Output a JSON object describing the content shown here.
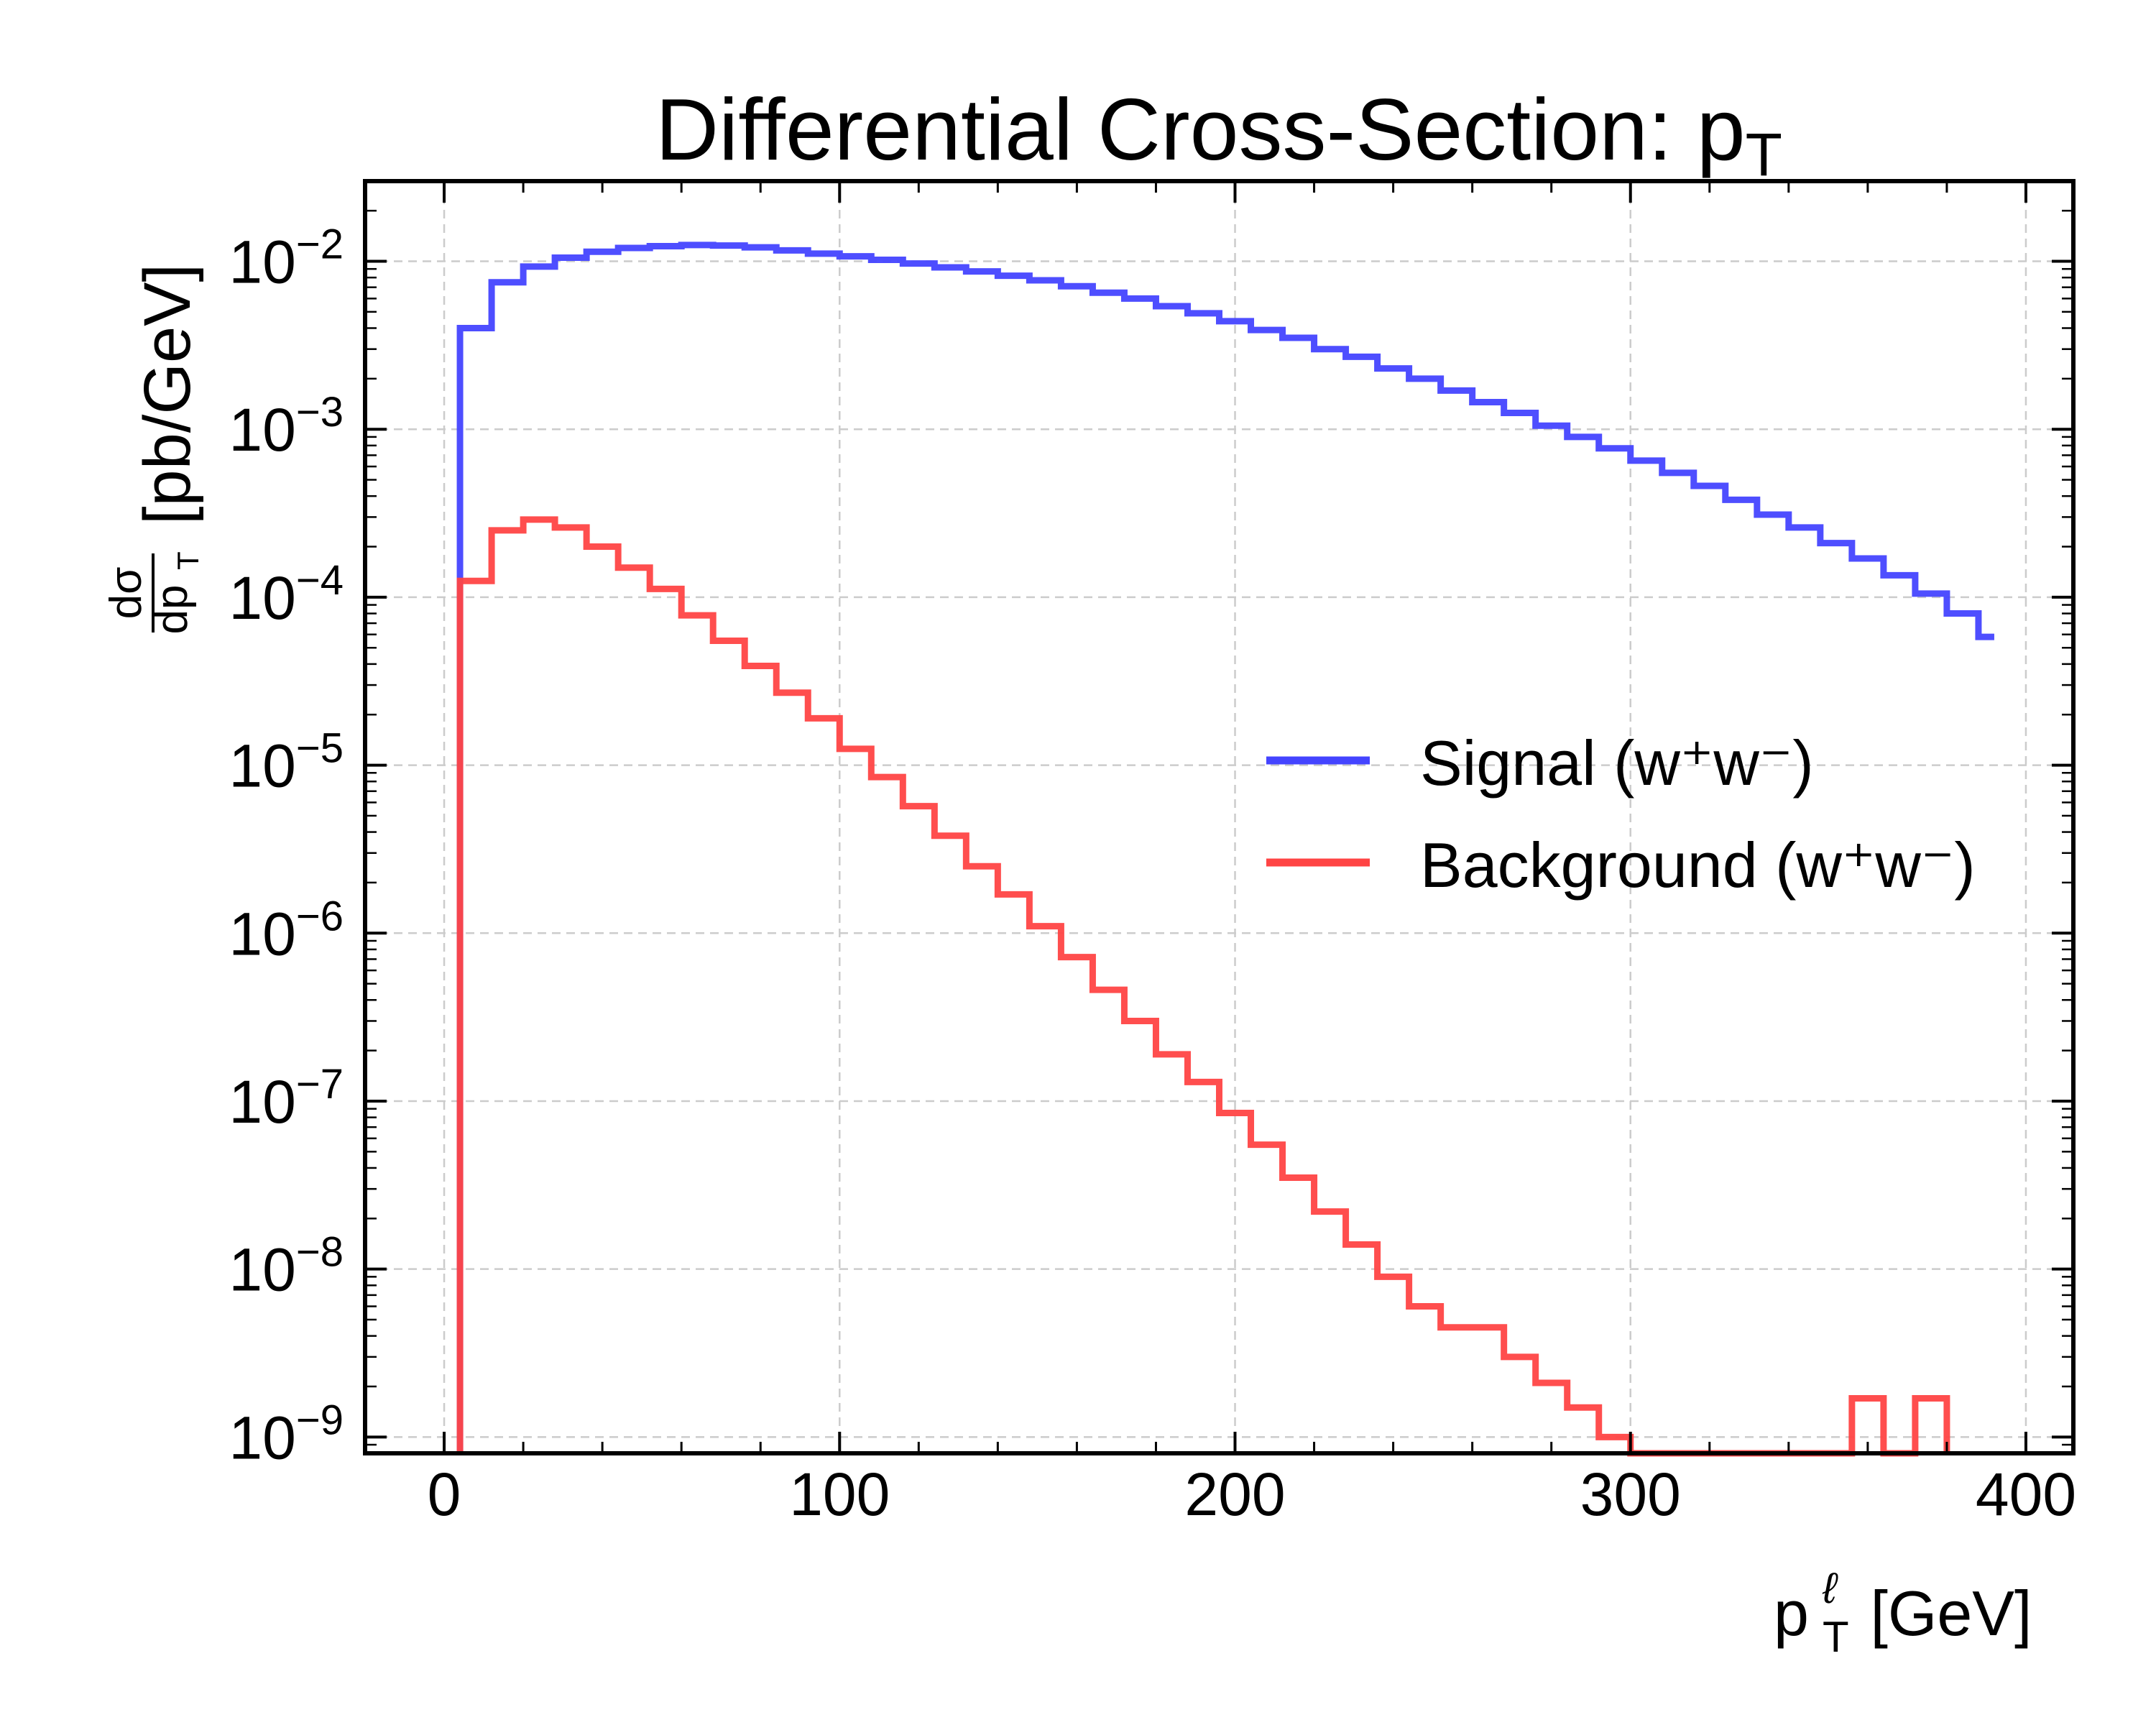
{
  "chart_data": {
    "type": "histogram-step",
    "title": {
      "base": "Differential Cross-Section: p",
      "sub": "T"
    },
    "xlabel": {
      "base": "p",
      "sup": "ℓ",
      "sub": "T",
      "unit": " [GeV]"
    },
    "ylabel": {
      "num": "dσ",
      "den_base": "dp",
      "den_sub": "T",
      "unit": "[pb/GeV]"
    },
    "xlim": [
      -20,
      412
    ],
    "ylim": [
      8e-10,
      0.03
    ],
    "yscale": "log",
    "grid": true,
    "x_ticks": [
      0,
      100,
      200,
      300,
      400
    ],
    "x_tick_labels": [
      "0",
      "100",
      "200",
      "300",
      "400"
    ],
    "y_tick_exponents": [
      -9,
      -8,
      -7,
      -6,
      -5,
      -4,
      -3,
      -2
    ],
    "y_tick_labels": [
      {
        "base": "10",
        "exp": "−9"
      },
      {
        "base": "10",
        "exp": "−8"
      },
      {
        "base": "10",
        "exp": "−7"
      },
      {
        "base": "10",
        "exp": "−6"
      },
      {
        "base": "10",
        "exp": "−5"
      },
      {
        "base": "10",
        "exp": "−4"
      },
      {
        "base": "10",
        "exp": "−3"
      },
      {
        "base": "10",
        "exp": "−2"
      }
    ],
    "legend_position": "center-right",
    "series": [
      {
        "name": "Signal (w⁺w⁻)",
        "color": "#4444ff",
        "edges": [
          4,
          12,
          20,
          28,
          36,
          44,
          52,
          60,
          68,
          76,
          84,
          92,
          100,
          108,
          116,
          124,
          132,
          140,
          148,
          156,
          164,
          172,
          180,
          188,
          196,
          204,
          212,
          220,
          228,
          236,
          244,
          252,
          260,
          268,
          276,
          284,
          292,
          300,
          308,
          316,
          324,
          332,
          340,
          348,
          356,
          364,
          372,
          380,
          388,
          392
        ],
        "values": [
          0.004,
          0.0075,
          0.0093,
          0.0105,
          0.0114,
          0.012,
          0.0123,
          0.0125,
          0.0124,
          0.0121,
          0.0116,
          0.0111,
          0.0107,
          0.0102,
          0.0097,
          0.0092,
          0.0087,
          0.0082,
          0.0077,
          0.0071,
          0.0065,
          0.006,
          0.0054,
          0.0049,
          0.0044,
          0.0039,
          0.0035,
          0.003,
          0.0027,
          0.0023,
          0.002,
          0.0017,
          0.00145,
          0.00125,
          0.00105,
          0.0009,
          0.00077,
          0.00065,
          0.00055,
          0.00046,
          0.00038,
          0.00031,
          0.00026,
          0.00021,
          0.00017,
          0.000135,
          0.000105,
          8e-05,
          5.8e-05
        ]
      },
      {
        "name": "Background (w⁺w⁻)",
        "color": "#ff4444",
        "edges": [
          4,
          12,
          20,
          28,
          36,
          44,
          52,
          60,
          68,
          76,
          84,
          92,
          100,
          108,
          116,
          124,
          132,
          140,
          148,
          156,
          164,
          172,
          180,
          188,
          196,
          204,
          212,
          220,
          228,
          236,
          244,
          252,
          260,
          268,
          276,
          284,
          292,
          300,
          316,
          324,
          348,
          356,
          364,
          372,
          380
        ],
        "values": [
          0.000125,
          0.00025,
          0.00029,
          0.00026,
          0.0002,
          0.00015,
          0.000112,
          7.8e-05,
          5.5e-05,
          3.9e-05,
          2.7e-05,
          1.9e-05,
          1.25e-05,
          8.5e-06,
          5.7e-06,
          3.8e-06,
          2.5e-06,
          1.7e-06,
          1.1e-06,
          7.2e-07,
          4.6e-07,
          3e-07,
          1.9e-07,
          1.3e-07,
          8.5e-08,
          5.5e-08,
          3.5e-08,
          2.2e-08,
          1.4e-08,
          9e-09,
          6e-09,
          4.5e-09,
          4.5e-09,
          3e-09,
          2.1e-09,
          1.5e-09,
          1e-09,
          4.5e-10,
          4.5e-10,
          0.0,
          0.0,
          1.7e-09,
          0.0,
          1.7e-09
        ]
      }
    ]
  }
}
